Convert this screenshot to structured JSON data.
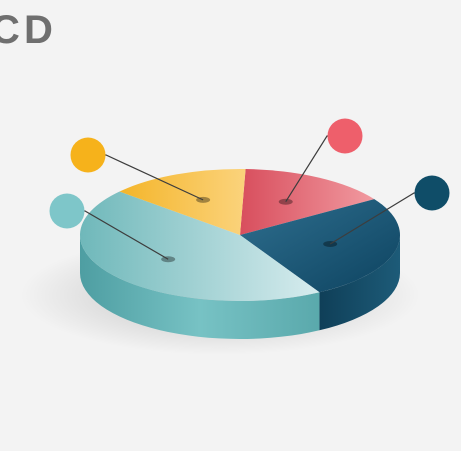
{
  "labels": {
    "left": "C",
    "right": "D"
  },
  "chart_data": {
    "type": "pie",
    "style": "3d-exploded-infographic",
    "title": "",
    "legend": "none",
    "slices": [
      {
        "name": "",
        "value": 13,
        "color": "#e8606a",
        "callout_color": "#ee5f6b"
      },
      {
        "name": "",
        "value": 22,
        "color": "#1f5f80",
        "callout_color": "#0f4d68"
      },
      {
        "name": "",
        "value": 38,
        "color": "#7cc1c3",
        "callout_color": "#7ec6c9"
      },
      {
        "name": "",
        "value": 12,
        "color": "#f2b631",
        "callout_color": "#f6b21b"
      }
    ]
  }
}
